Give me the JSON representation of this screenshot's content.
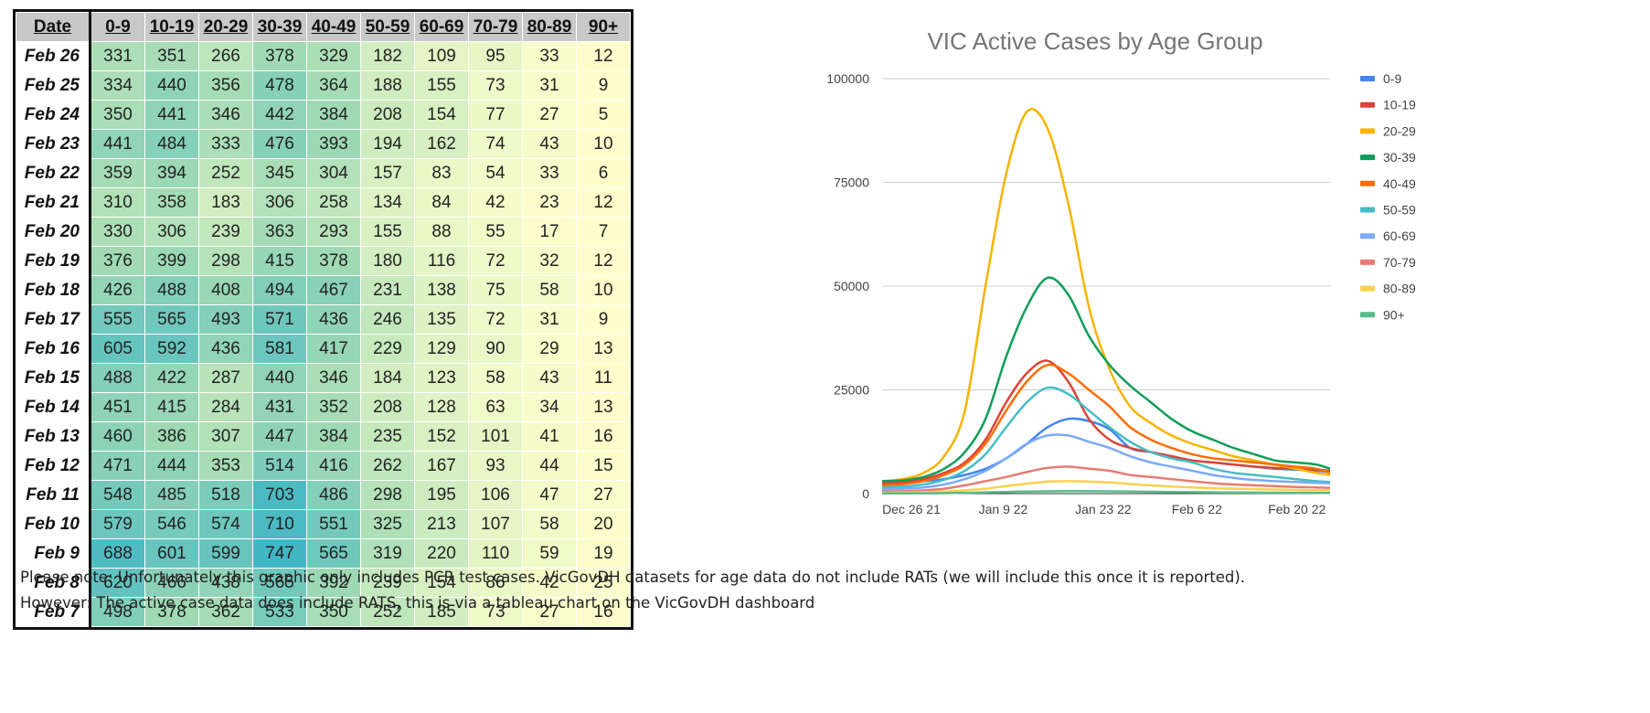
{
  "table": {
    "columns": [
      "Date",
      "0-9",
      "10-19",
      "20-29",
      "30-39",
      "40-49",
      "50-59",
      "60-69",
      "70-79",
      "80-89",
      "90+"
    ],
    "rows": [
      {
        "date": "Feb 26",
        "values": [
          331,
          351,
          266,
          378,
          329,
          182,
          109,
          95,
          33,
          12
        ]
      },
      {
        "date": "Feb 25",
        "values": [
          334,
          440,
          356,
          478,
          364,
          188,
          155,
          73,
          31,
          9
        ]
      },
      {
        "date": "Feb 24",
        "values": [
          350,
          441,
          346,
          442,
          384,
          208,
          154,
          77,
          27,
          5
        ]
      },
      {
        "date": "Feb 23",
        "values": [
          441,
          484,
          333,
          476,
          393,
          194,
          162,
          74,
          43,
          10
        ]
      },
      {
        "date": "Feb 22",
        "values": [
          359,
          394,
          252,
          345,
          304,
          157,
          83,
          54,
          33,
          6
        ]
      },
      {
        "date": "Feb 21",
        "values": [
          310,
          358,
          183,
          306,
          258,
          134,
          84,
          42,
          23,
          12
        ]
      },
      {
        "date": "Feb 20",
        "values": [
          330,
          306,
          239,
          363,
          293,
          155,
          88,
          55,
          17,
          7
        ]
      },
      {
        "date": "Feb 19",
        "values": [
          376,
          399,
          298,
          415,
          378,
          180,
          116,
          72,
          32,
          12
        ]
      },
      {
        "date": "Feb 18",
        "values": [
          426,
          488,
          408,
          494,
          467,
          231,
          138,
          75,
          58,
          10
        ]
      },
      {
        "date": "Feb 17",
        "values": [
          555,
          565,
          493,
          571,
          436,
          246,
          135,
          72,
          31,
          9
        ]
      },
      {
        "date": "Feb 16",
        "values": [
          605,
          592,
          436,
          581,
          417,
          229,
          129,
          90,
          29,
          13
        ]
      },
      {
        "date": "Feb 15",
        "values": [
          488,
          422,
          287,
          440,
          346,
          184,
          123,
          58,
          43,
          11
        ]
      },
      {
        "date": "Feb 14",
        "values": [
          451,
          415,
          284,
          431,
          352,
          208,
          128,
          63,
          34,
          13
        ]
      },
      {
        "date": "Feb 13",
        "values": [
          460,
          386,
          307,
          447,
          384,
          235,
          152,
          101,
          41,
          16
        ]
      },
      {
        "date": "Feb 12",
        "values": [
          471,
          444,
          353,
          514,
          416,
          262,
          167,
          93,
          44,
          15
        ]
      },
      {
        "date": "Feb 11",
        "values": [
          548,
          485,
          518,
          703,
          486,
          298,
          195,
          106,
          47,
          27
        ]
      },
      {
        "date": "Feb 10",
        "values": [
          579,
          546,
          574,
          710,
          551,
          325,
          213,
          107,
          58,
          20
        ]
      },
      {
        "date": "Feb 9",
        "values": [
          688,
          601,
          599,
          747,
          565,
          319,
          220,
          110,
          59,
          19
        ]
      },
      {
        "date": "Feb 8",
        "values": [
          620,
          466,
          438,
          565,
          392,
          239,
          154,
          86,
          42,
          25
        ]
      },
      {
        "date": "Feb 7",
        "values": [
          498,
          378,
          362,
          533,
          350,
          252,
          185,
          73,
          27,
          16
        ]
      }
    ],
    "scale_colors": {
      "low": "#ffffcc",
      "mid": "#a1dab4",
      "high": "#41b6c4"
    }
  },
  "chart_data": {
    "type": "line",
    "title": "VIC Active Cases by Age Group",
    "x_start": "2021-12-24",
    "x_end": "2022-02-27",
    "xlim": [
      "2021-12-24",
      "2022-02-27"
    ],
    "x_ticks": [
      {
        "label": "Dec 26 21",
        "date": "2021-12-26"
      },
      {
        "label": "Jan 9 22",
        "date": "2022-01-09"
      },
      {
        "label": "Jan 23 22",
        "date": "2022-01-23"
      },
      {
        "label": "Feb 6 22",
        "date": "2022-02-06"
      },
      {
        "label": "Feb 20 22",
        "date": "2022-02-20"
      }
    ],
    "y_ticks": [
      0,
      25000,
      50000,
      75000,
      100000
    ],
    "ylim": [
      0,
      100000
    ],
    "grid": true,
    "legend_position": "right",
    "x": [
      "2021-12-24",
      "2021-12-27",
      "2021-12-30",
      "2022-01-02",
      "2022-01-05",
      "2022-01-08",
      "2022-01-11",
      "2022-01-14",
      "2022-01-17",
      "2022-01-20",
      "2022-01-23",
      "2022-01-26",
      "2022-01-29",
      "2022-02-01",
      "2022-02-04",
      "2022-02-07",
      "2022-02-10",
      "2022-02-13",
      "2022-02-16",
      "2022-02-19",
      "2022-02-22",
      "2022-02-25",
      "2022-02-27"
    ],
    "series": [
      {
        "name": "0-9",
        "color": "#4285f4",
        "values": [
          2500,
          2700,
          3000,
          3500,
          4500,
          6000,
          8500,
          12000,
          16000,
          18000,
          17500,
          15500,
          11000,
          10000,
          9000,
          8000,
          7500,
          7000,
          6500,
          6000,
          5800,
          5500,
          5200
        ]
      },
      {
        "name": "10-19",
        "color": "#db4437",
        "values": [
          2500,
          2800,
          3500,
          5000,
          7500,
          13000,
          22000,
          29000,
          32000,
          27000,
          18000,
          13000,
          11000,
          10000,
          9000,
          8000,
          7500,
          7000,
          6500,
          6200,
          6000,
          5800,
          5500
        ]
      },
      {
        "name": "20-29",
        "color": "#f4b400",
        "values": [
          3000,
          3500,
          5000,
          9000,
          20000,
          50000,
          77000,
          92000,
          88000,
          70000,
          45000,
          30000,
          21000,
          17000,
          14000,
          12000,
          10500,
          9000,
          8000,
          7000,
          6000,
          5000,
          4500
        ]
      },
      {
        "name": "30-39",
        "color": "#0f9d58",
        "values": [
          3000,
          3200,
          4000,
          6000,
          10000,
          18000,
          33000,
          45000,
          52000,
          48000,
          38000,
          31000,
          26000,
          22000,
          18000,
          15000,
          13000,
          11000,
          9500,
          8000,
          7500,
          7000,
          6000
        ]
      },
      {
        "name": "40-49",
        "color": "#ff6d00",
        "values": [
          2000,
          2300,
          3000,
          4500,
          7000,
          12000,
          20000,
          27000,
          31000,
          29000,
          25000,
          21000,
          16000,
          13000,
          11000,
          9500,
          8500,
          8000,
          7500,
          7000,
          6500,
          6000,
          5000
        ]
      },
      {
        "name": "50-59",
        "color": "#46bdc6",
        "values": [
          1500,
          1700,
          2200,
          3300,
          5500,
          9500,
          16000,
          22000,
          25500,
          24000,
          20000,
          16000,
          12500,
          10000,
          8500,
          7500,
          6000,
          5000,
          4500,
          4000,
          3500,
          3000,
          2800
        ]
      },
      {
        "name": "60-69",
        "color": "#7baaf7",
        "values": [
          1000,
          1200,
          1500,
          2200,
          3500,
          5500,
          8500,
          12000,
          14000,
          14000,
          12500,
          11000,
          9000,
          7500,
          6500,
          5500,
          4500,
          3800,
          3300,
          3000,
          2800,
          2600,
          2500
        ]
      },
      {
        "name": "70-79",
        "color": "#e67c73",
        "values": [
          500,
          600,
          800,
          1200,
          2000,
          3000,
          4000,
          5200,
          6200,
          6500,
          6000,
          5500,
          4500,
          4000,
          3500,
          3000,
          2500,
          2200,
          2000,
          1800,
          1600,
          1500,
          1400
        ]
      },
      {
        "name": "80-89",
        "color": "#fcd04f",
        "values": [
          200,
          250,
          350,
          500,
          800,
          1200,
          1800,
          2400,
          2900,
          3000,
          2900,
          2700,
          2300,
          2000,
          1700,
          1500,
          1300,
          1200,
          1100,
          1000,
          900,
          800,
          800
        ]
      },
      {
        "name": "90+",
        "color": "#57bb8a",
        "values": [
          50,
          60,
          80,
          120,
          200,
          300,
          400,
          500,
          550,
          600,
          580,
          550,
          500,
          450,
          400,
          350,
          300,
          270,
          250,
          220,
          200,
          180,
          170
        ]
      }
    ]
  },
  "notes": {
    "line1": "Please note: Unfortunately this graphic only includes PCR test cases. VicGovDH datasets for age data do not include RATs (we will include this once it is reported).",
    "line2": "However: The active case data does include RATS, this is via a tableau chart on the VicGovDH dashboard"
  }
}
